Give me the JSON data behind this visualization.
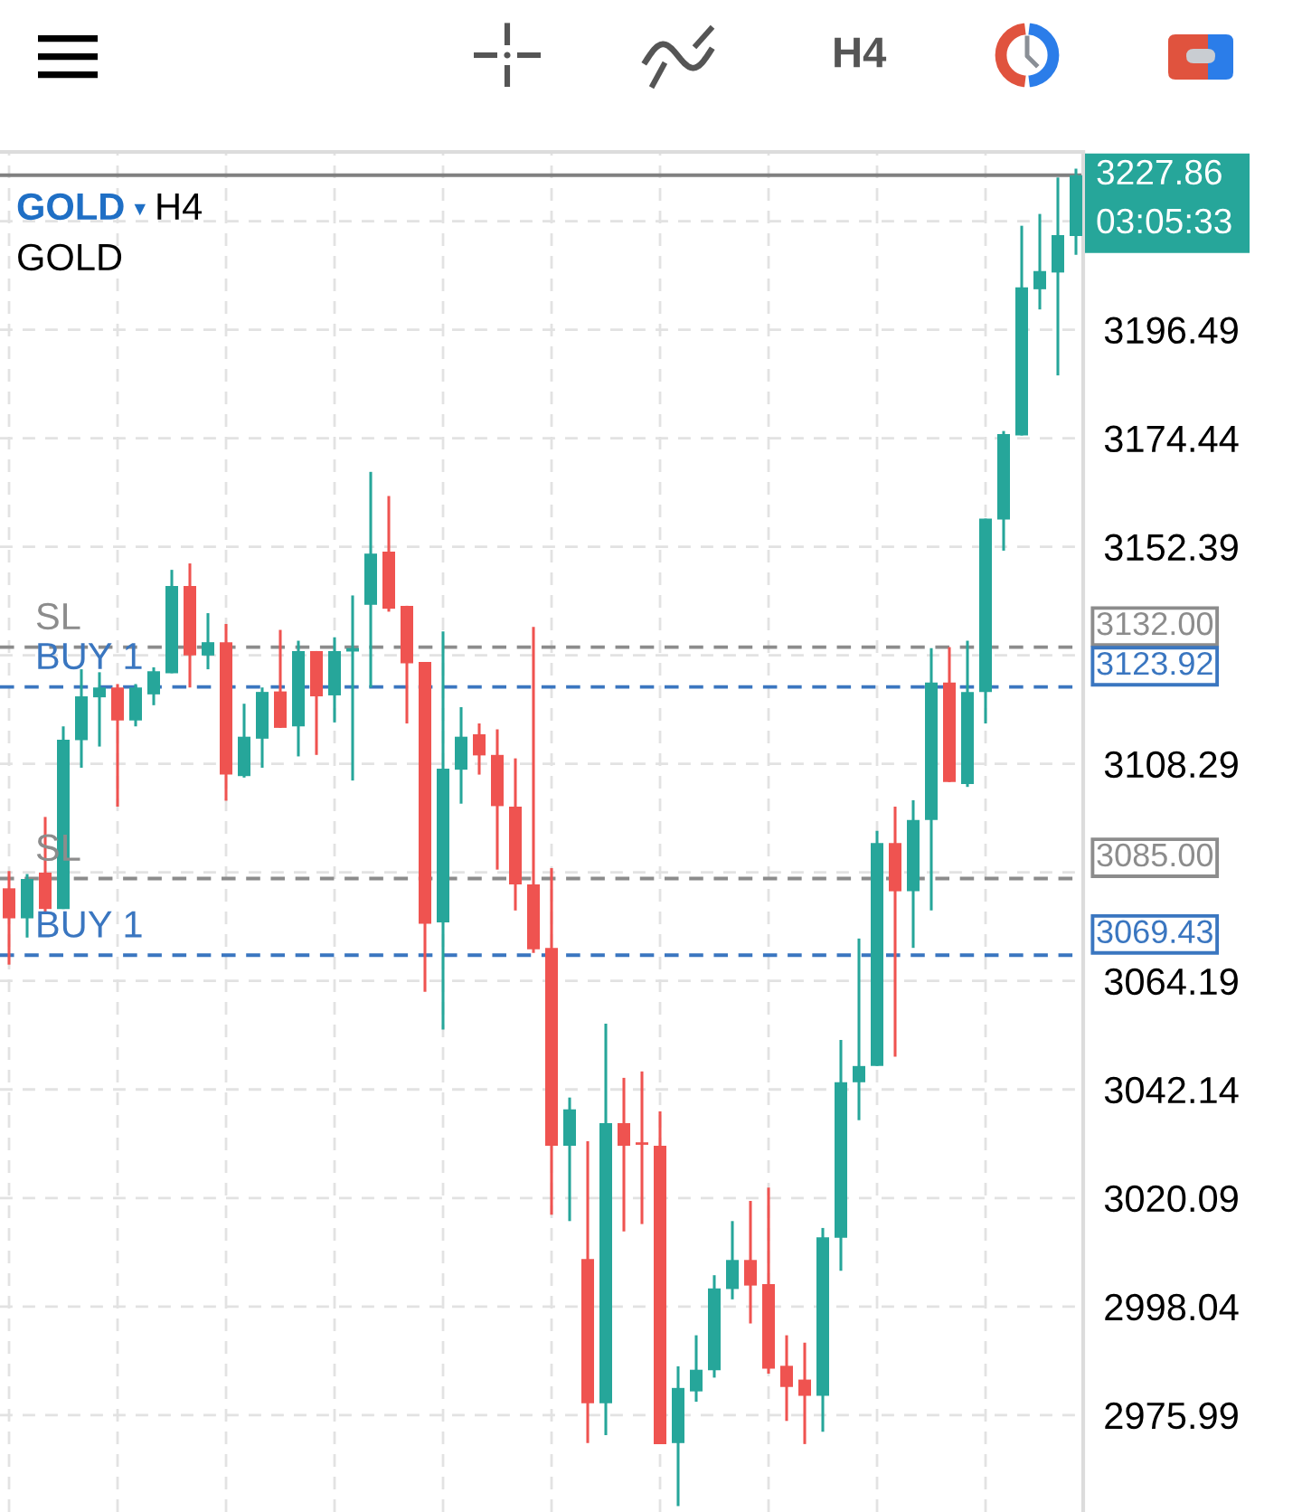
{
  "chart_data": {
    "type": "candlestick",
    "title": "GOLD ▾ H4",
    "subtitle": "GOLD",
    "categories": [
      null,
      null,
      null,
      null,
      null,
      null,
      null,
      null,
      null,
      null,
      null,
      null,
      null,
      null,
      null,
      null,
      null,
      null,
      null,
      null,
      null,
      null,
      null,
      null,
      null,
      null,
      null,
      null,
      null,
      null,
      null,
      null,
      null,
      null,
      null,
      null,
      null,
      null,
      null,
      null,
      null,
      null,
      null,
      null,
      null,
      null,
      null,
      null,
      null,
      null,
      null,
      null,
      null,
      null,
      null,
      null,
      null,
      null,
      null,
      null
    ],
    "ohlc": [
      [
        3083.0,
        3086.5,
        3067.5,
        3076.9
      ],
      [
        3076.9,
        3085.9,
        3073.0,
        3084.9
      ],
      [
        3086.2,
        3097.5,
        3077.9,
        3078.8
      ],
      [
        3078.8,
        3115.9,
        3078.8,
        3113.2
      ],
      [
        3113.1,
        3127.5,
        3107.5,
        3122.0
      ],
      [
        3121.8,
        3126.9,
        3111.8,
        3123.8
      ],
      [
        3123.8,
        3124.5,
        3099.6,
        3117.1
      ],
      [
        3117.1,
        3124.5,
        3115.9,
        3123.8
      ],
      [
        3122.4,
        3127.9,
        3120.2,
        3127.1
      ],
      [
        3126.7,
        3147.7,
        3126.7,
        3144.4
      ],
      [
        3144.4,
        3149.0,
        3123.8,
        3130.3
      ],
      [
        3130.3,
        3138.9,
        3127.5,
        3133.0
      ],
      [
        3133.0,
        3136.7,
        3100.8,
        3106.1
      ],
      [
        3105.8,
        3120.5,
        3105.5,
        3113.8
      ],
      [
        3113.4,
        3123.8,
        3107.5,
        3122.9
      ],
      [
        3123.0,
        3135.5,
        3115.6,
        3115.6
      ],
      [
        3115.9,
        3133.3,
        3109.8,
        3131.2
      ],
      [
        3131.2,
        3131.2,
        3110.1,
        3122.0
      ],
      [
        3122.2,
        3134.0,
        3116.7,
        3131.2
      ],
      [
        3131.1,
        3142.5,
        3104.9,
        3131.8
      ],
      [
        3140.6,
        3167.6,
        3123.8,
        3151.0
      ],
      [
        3151.4,
        3162.7,
        3139.2,
        3139.8
      ],
      [
        3140.4,
        3140.4,
        3116.5,
        3128.7
      ],
      [
        3129.0,
        3129.0,
        3062.0,
        3075.8
      ],
      [
        3076.1,
        3135.2,
        3054.3,
        3107.3
      ],
      [
        3107.1,
        3119.8,
        3100.2,
        3113.8
      ],
      [
        3114.3,
        3116.5,
        3106.1,
        3110.0
      ],
      [
        3110.1,
        3115.3,
        3086.8,
        3099.7
      ],
      [
        3099.6,
        3109.4,
        3078.5,
        3083.8
      ],
      [
        3083.8,
        3136.1,
        3069.9,
        3070.6
      ],
      [
        3070.9,
        3087.1,
        3016.7,
        3030.7
      ],
      [
        3030.7,
        3040.5,
        3015.4,
        3038.1
      ],
      [
        3007.7,
        3031.6,
        2970.3,
        2978.4
      ],
      [
        2978.4,
        3055.5,
        2971.9,
        3035.3
      ],
      [
        3035.3,
        3044.5,
        3013.3,
        3030.7
      ],
      [
        3031.4,
        3045.8,
        3014.8,
        3030.9
      ],
      [
        3030.7,
        3037.7,
        2970.1,
        2970.1
      ],
      [
        2970.3,
        2985.9,
        2957.5,
        2981.5
      ],
      [
        2980.8,
        2992.2,
        2978.7,
        2985.2
      ],
      [
        2985.1,
        3004.4,
        2983.6,
        3001.7
      ],
      [
        3001.6,
        3015.4,
        2999.5,
        3007.5
      ],
      [
        3007.5,
        3019.5,
        2994.6,
        3002.3
      ],
      [
        3002.6,
        3022.2,
        2984.4,
        2985.4
      ],
      [
        2986.0,
        2992.2,
        2974.8,
        2981.7
      ],
      [
        2983.2,
        2990.7,
        2970.1,
        2979.9
      ],
      [
        2979.9,
        3014.0,
        2972.6,
        3012.1
      ],
      [
        3012.0,
        3052.2,
        3005.3,
        3043.6
      ],
      [
        3043.6,
        3072.8,
        3035.9,
        3046.9
      ],
      [
        3046.9,
        3094.7,
        3046.9,
        3092.2
      ],
      [
        3092.2,
        3099.6,
        3048.8,
        3082.4
      ],
      [
        3082.4,
        3100.9,
        3070.9,
        3096.9
      ],
      [
        3096.9,
        3131.8,
        3078.5,
        3124.8
      ],
      [
        3124.8,
        3132.0,
        3104.6,
        3104.6
      ],
      [
        3104.2,
        3133.3,
        3103.6,
        3122.9
      ],
      [
        3122.9,
        3158.1,
        3116.5,
        3158.1
      ],
      [
        3157.9,
        3175.9,
        3151.6,
        3175.3
      ],
      [
        3175.0,
        3217.6,
        3175.0,
        3205.1
      ],
      [
        3204.7,
        3220.0,
        3200.6,
        3208.4
      ],
      [
        3208.1,
        3227.4,
        3187.2,
        3215.7
      ],
      [
        3215.5,
        3229.2,
        3211.7,
        3227.86
      ]
    ],
    "colors": [
      "#ef5350",
      "#26a69a",
      "#ef5350",
      "#26a69a",
      "#26a69a",
      "#26a69a",
      "#ef5350",
      "#26a69a",
      "#26a69a",
      "#26a69a",
      "#ef5350",
      "#26a69a",
      "#ef5350",
      "#26a69a",
      "#26a69a",
      "#ef5350",
      "#26a69a",
      "#ef5350",
      "#26a69a",
      "#26a69a",
      "#26a69a",
      "#ef5350",
      "#ef5350",
      "#ef5350",
      "#26a69a",
      "#26a69a",
      "#ef5350",
      "#ef5350",
      "#ef5350",
      "#ef5350",
      "#ef5350",
      "#26a69a",
      "#ef5350",
      "#26a69a",
      "#ef5350",
      "#ef5350",
      "#ef5350",
      "#26a69a",
      "#26a69a",
      "#26a69a",
      "#26a69a",
      "#ef5350",
      "#ef5350",
      "#ef5350",
      "#ef5350",
      "#26a69a",
      "#26a69a",
      "#26a69a",
      "#26a69a",
      "#ef5350",
      "#26a69a",
      "#26a69a",
      "#ef5350",
      "#26a69a",
      "#26a69a",
      "#26a69a",
      "#26a69a",
      "#26a69a",
      "#26a69a",
      "#26a69a"
    ],
    "ylim": [
      2956.3,
      3232.6
    ],
    "yticks": [
      {
        "value": 3218.54,
        "label": null
      },
      3196.49,
      3174.44,
      3152.39,
      {
        "value": 3130.34,
        "label": null
      },
      3108.29,
      {
        "value": 3086.24,
        "label": null
      },
      3064.19,
      3042.14,
      3020.09,
      2998.04,
      2975.99
    ],
    "grid": true,
    "tick_labels": "y",
    "ref_lines": [
      {
        "axis": "y",
        "value": 3227.86,
        "color": "#808080",
        "line_style": "solid"
      },
      {
        "axis": "y",
        "value": 3132.0,
        "label": "SL",
        "color": "#8c8c8c",
        "line_style": "dashed"
      },
      {
        "axis": "y",
        "value": 3123.92,
        "label": "BUY 1",
        "color": "#3a76c0",
        "line_style": "dashed"
      },
      {
        "axis": "y",
        "value": 3085.0,
        "label": "SL",
        "color": "#8c8c8c",
        "line_style": "dashed"
      },
      {
        "axis": "y",
        "value": 3069.43,
        "label": "BUY 1",
        "color": "#3a76c0",
        "line_style": "dashed"
      }
    ],
    "annotations": [
      "H4",
      "03:05:33",
      "3227.86",
      "3132.00",
      "3123.92",
      "3085.00",
      "3069.43"
    ]
  }
}
